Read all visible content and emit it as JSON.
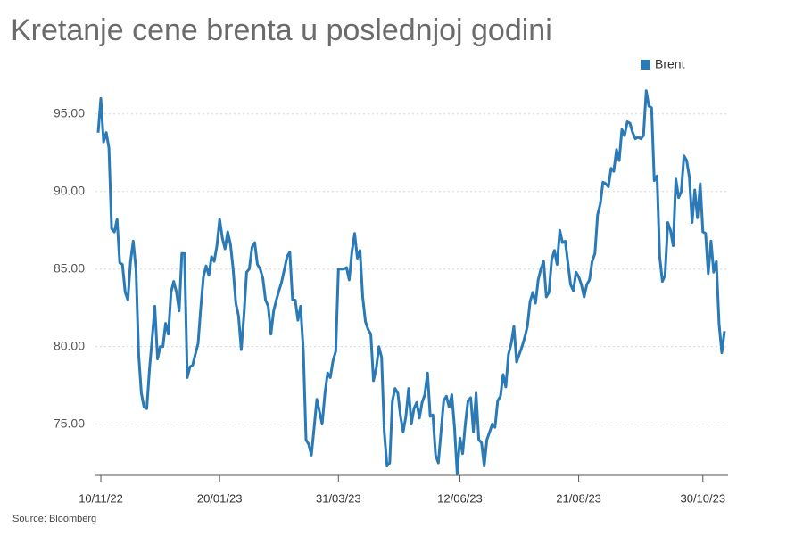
{
  "chart_data": {
    "type": "line",
    "title": "Kretanje cene brenta u poslednjoj godini",
    "source": "Source: Bloomberg",
    "categories": [
      null,
      "10/11/22",
      null,
      null,
      null,
      null,
      null,
      null,
      null,
      null,
      null,
      null,
      null,
      null,
      null,
      null,
      null,
      null,
      null,
      null,
      null,
      null,
      null,
      null,
      null,
      null,
      null,
      null,
      null,
      null,
      null,
      null,
      null,
      null,
      null,
      null,
      null,
      null,
      null,
      null,
      null,
      null,
      null,
      null,
      null,
      "20/01/23",
      null,
      null,
      null,
      null,
      null,
      null,
      null,
      null,
      null,
      null,
      null,
      null,
      null,
      null,
      null,
      null,
      null,
      null,
      null,
      null,
      null,
      null,
      null,
      null,
      null,
      null,
      null,
      null,
      null,
      null,
      null,
      null,
      null,
      null,
      null,
      null,
      null,
      null,
      null,
      null,
      null,
      null,
      null,
      "31/03/23",
      null,
      null,
      null,
      null,
      null,
      null,
      null,
      null,
      null,
      null,
      null,
      null,
      null,
      null,
      null,
      null,
      null,
      null,
      null,
      null,
      null,
      null,
      null,
      null,
      null,
      null,
      null,
      null,
      null,
      null,
      null,
      null,
      null,
      null,
      null,
      null,
      null,
      null,
      null,
      null,
      null,
      null,
      null,
      null,
      "12/06/23",
      null,
      null,
      null,
      null,
      null,
      null,
      null,
      null,
      null,
      null,
      null,
      null,
      null,
      null,
      null,
      null,
      null,
      null,
      null,
      null,
      null,
      null,
      null,
      null,
      null,
      null,
      null,
      null,
      null,
      null,
      null,
      null,
      null,
      null,
      null,
      null,
      null,
      null,
      null,
      null,
      null,
      null,
      null,
      "21/08/23",
      null,
      null,
      null,
      null,
      null,
      null,
      null,
      null,
      null,
      null,
      null,
      null,
      null,
      null,
      null,
      null,
      null,
      null,
      null,
      null,
      null,
      null,
      null,
      null,
      null,
      null,
      null,
      null,
      null,
      null,
      null,
      null,
      null,
      null,
      null,
      null,
      null,
      null,
      null,
      null,
      null,
      null,
      null,
      null,
      null,
      "30/10/23",
      null,
      null,
      null,
      null,
      null,
      null,
      null,
      null
    ],
    "series": [
      {
        "name": "Brent",
        "color": "#2a7ab7",
        "values": [
          93.8,
          96.0,
          93.2,
          93.8,
          92.8,
          87.6,
          87.4,
          88.2,
          85.4,
          85.3,
          83.5,
          83.0,
          85.5,
          86.8,
          85.0,
          79.5,
          77.0,
          76.1,
          76.0,
          78.5,
          80.5,
          82.6,
          79.2,
          80.0,
          80.0,
          81.5,
          80.8,
          83.5,
          84.2,
          83.5,
          82.3,
          86.0,
          86.0,
          78.0,
          78.7,
          78.8,
          79.5,
          80.2,
          82.5,
          84.5,
          85.2,
          84.6,
          85.8,
          85.5,
          86.5,
          88.2,
          87.0,
          86.3,
          87.4,
          86.6,
          85.0,
          82.8,
          82.0,
          79.8,
          82.0,
          84.8,
          85.0,
          86.4,
          86.7,
          85.3,
          85.0,
          84.4,
          83.0,
          82.6,
          80.8,
          82.3,
          83.0,
          83.6,
          84.2,
          85.0,
          85.8,
          86.1,
          83.0,
          83.0,
          81.7,
          82.6,
          79.7,
          74.0,
          73.7,
          73.0,
          74.8,
          76.6,
          75.8,
          75.0,
          77.0,
          78.3,
          78.0,
          79.1,
          79.7,
          85.0,
          85.0,
          85.0,
          85.1,
          84.3,
          86.1,
          87.3,
          85.7,
          86.2,
          83.2,
          81.6,
          81.1,
          80.8,
          77.8,
          78.6,
          80.0,
          79.3,
          74.5,
          72.3,
          72.5,
          76.5,
          77.3,
          77.0,
          75.5,
          74.5,
          75.5,
          77.3,
          75.0,
          76.0,
          76.4,
          75.4,
          76.4,
          76.9,
          78.3,
          75.5,
          75.6,
          73.0,
          72.5,
          74.5,
          76.5,
          76.8,
          76.1,
          76.9,
          74.8,
          71.8,
          74.1,
          73.1,
          75.0,
          76.5,
          76.7,
          74.5,
          77.0,
          74.0,
          73.8,
          72.3,
          74.0,
          74.5,
          75.0,
          74.8,
          76.5,
          76.8,
          78.2,
          77.4,
          79.5,
          80.2,
          81.3,
          79.0,
          79.5,
          80.0,
          80.6,
          81.3,
          82.9,
          83.5,
          82.8,
          84.3,
          85.0,
          85.5,
          83.2,
          83.5,
          85.6,
          86.2,
          85.3,
          87.5,
          86.7,
          86.8,
          85.4,
          84.0,
          83.6,
          84.8,
          84.5,
          84.0,
          83.2,
          84.0,
          84.3,
          85.5,
          86.0,
          88.5,
          89.2,
          90.6,
          90.5,
          90.3,
          91.5,
          91.3,
          92.7,
          92.0,
          94.0,
          93.6,
          94.5,
          94.4,
          93.8,
          93.4,
          93.5,
          93.4,
          93.6,
          96.5,
          95.5,
          95.4,
          90.7,
          91.0,
          85.8,
          84.2,
          84.6,
          88.0,
          87.5,
          86.5,
          90.8,
          89.6,
          90.0,
          92.3,
          92.0,
          90.9,
          88.0,
          90.1,
          88.3,
          90.5,
          87.4,
          87.3,
          84.7,
          86.8,
          84.8,
          85.5,
          81.5,
          79.6,
          81.0
        ]
      }
    ],
    "ylim": [
      71.7,
      97
    ],
    "yticks": [
      {
        "value": 75,
        "label": "75.00"
      },
      {
        "value": 80,
        "label": "80.00"
      },
      {
        "value": 85,
        "label": "85.00"
      },
      {
        "value": 90,
        "label": "90.00"
      },
      {
        "value": 95,
        "label": "95.00"
      }
    ],
    "grid": true,
    "legend": "top-right"
  }
}
